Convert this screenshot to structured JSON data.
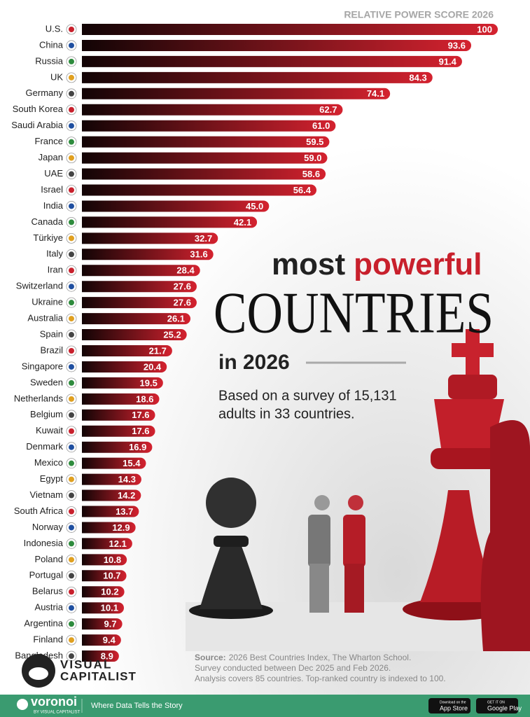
{
  "chart_data": {
    "type": "bar",
    "axis_label": "RELATIVE POWER SCORE 2026",
    "title": {
      "word1": "most",
      "word2": "powerful",
      "line2": "COUNTRIES",
      "line3": "in 2026"
    },
    "subtitle": [
      "Based on a survey of 15,131",
      "adults in 33 countries."
    ],
    "categories": [
      "U.S.",
      "China",
      "Russia",
      "UK",
      "Germany",
      "South Korea",
      "Saudi Arabia",
      "France",
      "Japan",
      "UAE",
      "Israel",
      "India",
      "Canada",
      "Türkiye",
      "Italy",
      "Iran",
      "Switzerland",
      "Ukraine",
      "Australia",
      "Spain",
      "Brazil",
      "Singapore",
      "Sweden",
      "Netherlands",
      "Belgium",
      "Kuwait",
      "Denmark",
      "Mexico",
      "Egypt",
      "Vietnam",
      "South Africa",
      "Norway",
      "Indonesia",
      "Poland",
      "Portugal",
      "Belarus",
      "Austria",
      "Argentina",
      "Finland",
      "Bangladesh"
    ],
    "values": [
      100,
      93.6,
      91.4,
      84.3,
      74.1,
      62.7,
      61.0,
      59.5,
      59.0,
      58.6,
      56.4,
      45.0,
      42.1,
      32.7,
      31.6,
      28.4,
      27.6,
      27.6,
      26.1,
      25.2,
      21.7,
      20.4,
      19.5,
      18.6,
      17.6,
      17.6,
      16.9,
      15.4,
      14.3,
      14.2,
      13.7,
      12.9,
      12.1,
      10.8,
      10.7,
      10.2,
      10.1,
      9.7,
      9.4,
      8.9
    ],
    "value_labels": [
      "100",
      "93.6",
      "91.4",
      "84.3",
      "74.1",
      "62.7",
      "61.0",
      "59.5",
      "59.0",
      "58.6",
      "56.4",
      "45.0",
      "42.1",
      "32.7",
      "31.6",
      "28.4",
      "27.6",
      "27.6",
      "26.1",
      "25.2",
      "21.7",
      "20.4",
      "19.5",
      "18.6",
      "17.6",
      "17.6",
      "16.9",
      "15.4",
      "14.3",
      "14.2",
      "13.7",
      "12.9",
      "12.1",
      "10.8",
      "10.7",
      "10.2",
      "10.1",
      "9.7",
      "9.4",
      "8.9"
    ],
    "xlim": [
      0,
      100
    ],
    "gradient": [
      "#120405",
      "#d4222f"
    ],
    "source": {
      "label": "Source:",
      "lines": [
        "2026 Best Countries Index, The Wharton School.",
        "Survey conducted between Dec 2025 and Feb 2026.",
        "Analysis covers 85 countries. Top-ranked country is indexed to 100."
      ]
    }
  },
  "branding": {
    "logo": [
      "VISUAL",
      "CAPITALIST"
    ],
    "footer_brand": "voronoi",
    "footer_by": "BY VISUAL CAPITALIST",
    "tagline": "Where Data Tells the Story",
    "app_store": [
      "Download on the",
      "App Store"
    ],
    "google_play": [
      "GET IT ON",
      "Google Play"
    ]
  }
}
